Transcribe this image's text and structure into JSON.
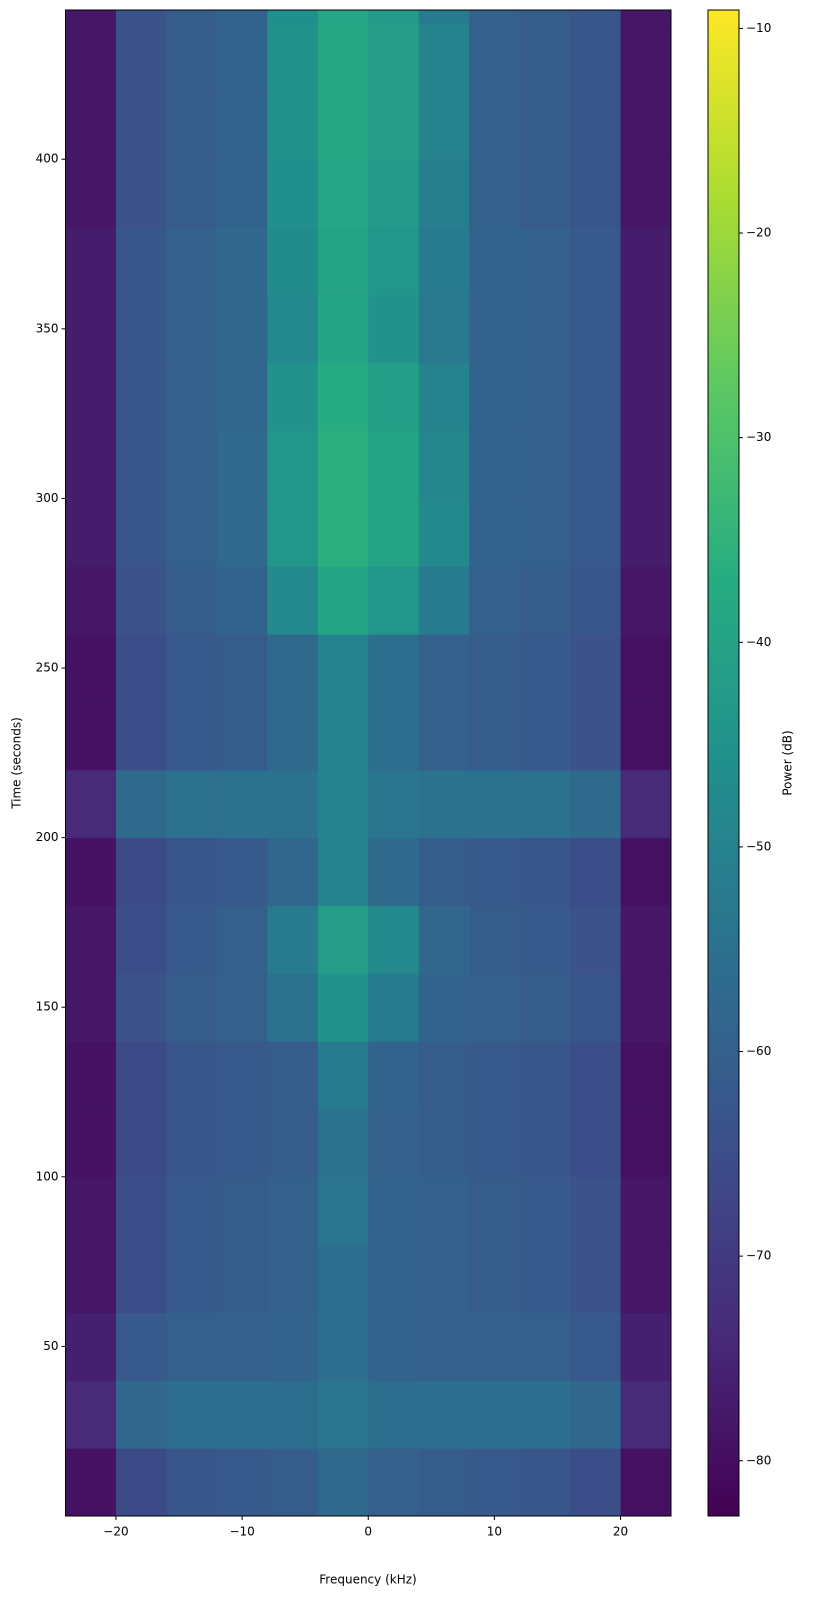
{
  "chart_data": {
    "type": "heatmap",
    "xlabel": "Frequency (kHz)",
    "ylabel": "Time (seconds)",
    "colorbar_label": "Power (dB)",
    "colormap": "viridis",
    "xlim": [
      -24,
      24
    ],
    "ylim": [
      0,
      444
    ],
    "clim": [
      -82.7,
      -9.1
    ],
    "xticks": [
      {
        "value": -20,
        "label": "−20"
      },
      {
        "value": -10,
        "label": "−10"
      },
      0,
      10,
      20
    ],
    "yticks": [
      50,
      100,
      150,
      200,
      250,
      300,
      350,
      400
    ],
    "colorbar_ticks": [
      {
        "value": -10,
        "label": "−10"
      },
      {
        "value": -20,
        "label": "−20"
      },
      {
        "value": -30,
        "label": "−30"
      },
      {
        "value": -40,
        "label": "−40"
      },
      {
        "value": -50,
        "label": "−50"
      },
      {
        "value": -60,
        "label": "−60"
      },
      {
        "value": -70,
        "label": "−70"
      },
      {
        "value": -80,
        "label": "−80"
      }
    ],
    "x_edges": [
      -24,
      -20,
      -16,
      -12,
      -8,
      -4,
      0,
      4,
      8,
      12,
      16,
      20,
      24
    ],
    "y_edges": [
      0,
      20,
      40,
      60,
      80,
      100,
      120,
      140,
      160,
      180,
      200,
      220,
      240,
      260,
      280,
      300,
      320,
      340,
      360,
      380,
      400,
      420,
      440,
      444
    ],
    "z": [
      [
        -79,
        -66,
        -63,
        -62,
        -61,
        -57,
        -60,
        -61,
        -62,
        -63,
        -65,
        -79
      ],
      [
        -74,
        -58,
        -56,
        -56,
        -56,
        -54,
        -56,
        -56,
        -56,
        -56,
        -58,
        -74
      ],
      [
        -76,
        -62,
        -60,
        -60,
        -59,
        -56,
        -59,
        -60,
        -60,
        -60,
        -62,
        -76
      ],
      [
        -78,
        -65,
        -62,
        -61,
        -60,
        -56,
        -59,
        -60,
        -61,
        -62,
        -64,
        -78
      ],
      [
        -78,
        -65,
        -62,
        -61,
        -60,
        -54,
        -59,
        -60,
        -61,
        -62,
        -64,
        -78
      ],
      [
        -79,
        -66,
        -63,
        -62,
        -61,
        -55,
        -60,
        -61,
        -62,
        -63,
        -65,
        -79
      ],
      [
        -79,
        -66,
        -63,
        -62,
        -61,
        -52,
        -59,
        -61,
        -62,
        -63,
        -65,
        -79
      ],
      [
        -78,
        -64,
        -61,
        -60,
        -55,
        -45,
        -52,
        -59,
        -60,
        -61,
        -63,
        -78
      ],
      [
        -78,
        -65,
        -62,
        -60,
        -52,
        -42,
        -48,
        -58,
        -61,
        -62,
        -64,
        -78
      ],
      [
        -79,
        -66,
        -63,
        -62,
        -58,
        -50,
        -57,
        -61,
        -62,
        -63,
        -65,
        -79
      ],
      [
        -74,
        -57,
        -55,
        -55,
        -55,
        -50,
        -54,
        -55,
        -55,
        -55,
        -57,
        -74
      ],
      [
        -79,
        -65,
        -62,
        -61,
        -57,
        -50,
        -56,
        -60,
        -61,
        -62,
        -64,
        -79
      ],
      [
        -79,
        -65,
        -62,
        -61,
        -57,
        -50,
        -56,
        -60,
        -61,
        -62,
        -64,
        -79
      ],
      [
        -78,
        -64,
        -61,
        -59,
        -48,
        -40,
        -44,
        -52,
        -60,
        -61,
        -63,
        -78
      ],
      [
        -77,
        -63,
        -60,
        -57,
        -44,
        -36,
        -40,
        -48,
        -59,
        -60,
        -62,
        -77
      ],
      [
        -77,
        -63,
        -60,
        -57,
        -44,
        -36,
        -40,
        -49,
        -59,
        -60,
        -62,
        -77
      ],
      [
        -77,
        -63,
        -60,
        -58,
        -45,
        -37,
        -41,
        -50,
        -59,
        -60,
        -62,
        -77
      ],
      [
        -77,
        -63,
        -60,
        -58,
        -48,
        -40,
        -45,
        -53,
        -59,
        -60,
        -62,
        -77
      ],
      [
        -77,
        -63,
        -60,
        -58,
        -47,
        -40,
        -44,
        -52,
        -59,
        -60,
        -62,
        -77
      ],
      [
        -78,
        -64,
        -61,
        -59,
        -46,
        -39,
        -43,
        -51,
        -60,
        -61,
        -63,
        -78
      ],
      [
        -78,
        -64,
        -61,
        -59,
        -45,
        -38,
        -42,
        -50,
        -60,
        -61,
        -63,
        -78
      ],
      [
        -78,
        -64,
        -61,
        -59,
        -45,
        -38,
        -42,
        -50,
        -60,
        -61,
        -63,
        -78
      ],
      [
        -78,
        -64,
        -61,
        -59,
        -46,
        -39,
        -43,
        -52,
        -60,
        -61,
        -63,
        -78
      ]
    ]
  }
}
